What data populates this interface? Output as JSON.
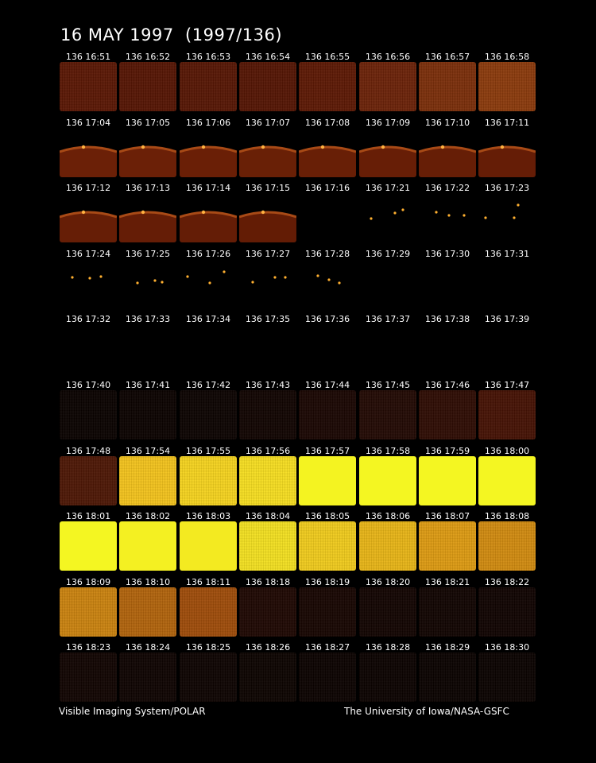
{
  "title": "16 MAY 1997  (1997/136)",
  "footer": {
    "left": "Visible Imaging System/POLAR",
    "right": "The University of Iowa/NASA-GSFC"
  },
  "frames": [
    {
      "label": "136 16:51",
      "type": "fill",
      "color": "#5a1704",
      "level": 0.35
    },
    {
      "label": "136 16:52",
      "type": "fill",
      "color": "#551503",
      "level": 0.33
    },
    {
      "label": "136 16:53",
      "type": "fill",
      "color": "#561604",
      "level": 0.33
    },
    {
      "label": "136 16:54",
      "type": "fill",
      "color": "#541503",
      "level": 0.32
    },
    {
      "label": "136 16:55",
      "type": "fill",
      "color": "#5c1804",
      "level": 0.35
    },
    {
      "label": "136 16:56",
      "type": "fill",
      "color": "#6a2208",
      "level": 0.4
    },
    {
      "label": "136 16:57",
      "type": "fill",
      "color": "#7a2e0a",
      "level": 0.45
    },
    {
      "label": "136 16:58",
      "type": "fill",
      "color": "#8a3a0c",
      "level": 0.5
    },
    {
      "label": "136 17:04",
      "type": "limb",
      "color": "#6b2007",
      "level": 0.4
    },
    {
      "label": "136 17:05",
      "type": "limb",
      "color": "#6b2007",
      "level": 0.4
    },
    {
      "label": "136 17:06",
      "type": "limb",
      "color": "#6a1f06",
      "level": 0.4
    },
    {
      "label": "136 17:07",
      "type": "limb",
      "color": "#692006",
      "level": 0.4
    },
    {
      "label": "136 17:08",
      "type": "limb",
      "color": "#681f06",
      "level": 0.4
    },
    {
      "label": "136 17:09",
      "type": "limb",
      "color": "#671e06",
      "level": 0.4
    },
    {
      "label": "136 17:10",
      "type": "limb",
      "color": "#661e06",
      "level": 0.4
    },
    {
      "label": "136 17:11",
      "type": "limb",
      "color": "#651d06",
      "level": 0.4
    },
    {
      "label": "136 17:12",
      "type": "limb",
      "color": "#661e06",
      "level": 0.4
    },
    {
      "label": "136 17:13",
      "type": "limb",
      "color": "#651d06",
      "level": 0.4
    },
    {
      "label": "136 17:14",
      "type": "limb",
      "color": "#641d06",
      "level": 0.4
    },
    {
      "label": "136 17:15",
      "type": "limb",
      "color": "#631c05",
      "level": 0.4
    },
    {
      "label": "136 17:16",
      "type": "dark",
      "color": "#000000",
      "level": 0
    },
    {
      "label": "136 17:21",
      "type": "stars",
      "color": "#000000",
      "level": 0
    },
    {
      "label": "136 17:22",
      "type": "stars",
      "color": "#000000",
      "level": 0
    },
    {
      "label": "136 17:23",
      "type": "stars",
      "color": "#000000",
      "level": 0
    },
    {
      "label": "136 17:24",
      "type": "stars",
      "color": "#000000",
      "level": 0
    },
    {
      "label": "136 17:25",
      "type": "stars",
      "color": "#000000",
      "level": 0
    },
    {
      "label": "136 17:26",
      "type": "stars",
      "color": "#000000",
      "level": 0
    },
    {
      "label": "136 17:27",
      "type": "stars",
      "color": "#000000",
      "level": 0
    },
    {
      "label": "136 17:28",
      "type": "stars",
      "color": "#000000",
      "level": 0
    },
    {
      "label": "136 17:29",
      "type": "dark",
      "color": "#000000",
      "level": 0
    },
    {
      "label": "136 17:30",
      "type": "dark",
      "color": "#000000",
      "level": 0
    },
    {
      "label": "136 17:31",
      "type": "dark",
      "color": "#000000",
      "level": 0
    },
    {
      "label": "136 17:32",
      "type": "dark",
      "color": "#000000",
      "level": 0
    },
    {
      "label": "136 17:33",
      "type": "dark",
      "color": "#000000",
      "level": 0
    },
    {
      "label": "136 17:34",
      "type": "dark",
      "color": "#000000",
      "level": 0
    },
    {
      "label": "136 17:35",
      "type": "dark",
      "color": "#000000",
      "level": 0
    },
    {
      "label": "136 17:36",
      "type": "dark",
      "color": "#000000",
      "level": 0
    },
    {
      "label": "136 17:37",
      "type": "dark",
      "color": "#000000",
      "level": 0
    },
    {
      "label": "136 17:38",
      "type": "dark",
      "color": "#000000",
      "level": 0
    },
    {
      "label": "136 17:39",
      "type": "dark",
      "color": "#000000",
      "level": 0
    },
    {
      "label": "136 17:40",
      "type": "fill",
      "color": "#0a0200",
      "level": 0.03
    },
    {
      "label": "136 17:41",
      "type": "fill",
      "color": "#0b0200",
      "level": 0.03
    },
    {
      "label": "136 17:42",
      "type": "fill",
      "color": "#0c0301",
      "level": 0.04
    },
    {
      "label": "136 17:43",
      "type": "fill",
      "color": "#110401",
      "level": 0.05
    },
    {
      "label": "136 17:44",
      "type": "fill",
      "color": "#1a0602",
      "level": 0.08
    },
    {
      "label": "136 17:45",
      "type": "fill",
      "color": "#220903",
      "level": 0.1
    },
    {
      "label": "136 17:46",
      "type": "fill",
      "color": "#2e0c03",
      "level": 0.14
    },
    {
      "label": "136 17:47",
      "type": "fill",
      "color": "#451204",
      "level": 0.22
    },
    {
      "label": "136 17:48",
      "type": "fill",
      "color": "#4d1705",
      "level": 0.25
    },
    {
      "label": "136 17:54",
      "type": "fill",
      "color": "#f2c21c",
      "level": 0.9
    },
    {
      "label": "136 17:55",
      "type": "fill",
      "color": "#f4d21e",
      "level": 0.92
    },
    {
      "label": "136 17:56",
      "type": "fill",
      "color": "#f5dd20",
      "level": 0.94
    },
    {
      "label": "136 17:57",
      "type": "fill",
      "color": "#f4f321",
      "level": 0.98
    },
    {
      "label": "136 17:58",
      "type": "fill",
      "color": "#f4f622",
      "level": 1
    },
    {
      "label": "136 17:59",
      "type": "fill",
      "color": "#f4f622",
      "level": 1
    },
    {
      "label": "136 18:00",
      "type": "fill",
      "color": "#f4f622",
      "level": 1
    },
    {
      "label": "136 18:01",
      "type": "fill",
      "color": "#f4f622",
      "level": 1
    },
    {
      "label": "136 18:02",
      "type": "fill",
      "color": "#f4f022",
      "level": 0.98
    },
    {
      "label": "136 18:03",
      "type": "fill",
      "color": "#f3ea21",
      "level": 0.97
    },
    {
      "label": "136 18:04",
      "type": "fill",
      "color": "#f2df20",
      "level": 0.95
    },
    {
      "label": "136 18:05",
      "type": "fill",
      "color": "#efca1c",
      "level": 0.9
    },
    {
      "label": "136 18:06",
      "type": "fill",
      "color": "#e7b416",
      "level": 0.85
    },
    {
      "label": "136 18:07",
      "type": "fill",
      "color": "#dc9a12",
      "level": 0.8
    },
    {
      "label": "136 18:08",
      "type": "fill",
      "color": "#d08a10",
      "level": 0.75
    },
    {
      "label": "136 18:09",
      "type": "fill",
      "color": "#c9820f",
      "level": 0.72
    },
    {
      "label": "136 18:10",
      "type": "fill",
      "color": "#b0630c",
      "level": 0.62
    },
    {
      "label": "136 18:11",
      "type": "fill",
      "color": "#9e4c0a",
      "level": 0.55
    },
    {
      "label": "136 18:18",
      "type": "fill",
      "color": "#1e0702",
      "level": 0.08
    },
    {
      "label": "136 18:19",
      "type": "fill",
      "color": "#170501",
      "level": 0.06
    },
    {
      "label": "136 18:20",
      "type": "fill",
      "color": "#120401",
      "level": 0.05
    },
    {
      "label": "136 18:21",
      "type": "fill",
      "color": "#110401",
      "level": 0.05
    },
    {
      "label": "136 18:22",
      "type": "fill",
      "color": "#100301",
      "level": 0.04
    },
    {
      "label": "136 18:23",
      "type": "fill",
      "color": "#110401",
      "level": 0.04
    },
    {
      "label": "136 18:24",
      "type": "fill",
      "color": "#0e0301",
      "level": 0.04
    },
    {
      "label": "136 18:25",
      "type": "fill",
      "color": "#0d0301",
      "level": 0.03
    },
    {
      "label": "136 18:26",
      "type": "fill",
      "color": "#0c0300",
      "level": 0.03
    },
    {
      "label": "136 18:27",
      "type": "fill",
      "color": "#0b0200",
      "level": 0.03
    },
    {
      "label": "136 18:28",
      "type": "fill",
      "color": "#0b0200",
      "level": 0.03
    },
    {
      "label": "136 18:29",
      "type": "fill",
      "color": "#0a0200",
      "level": 0.02
    },
    {
      "label": "136 18:30",
      "type": "fill",
      "color": "#0a0200",
      "level": 0.02
    }
  ]
}
